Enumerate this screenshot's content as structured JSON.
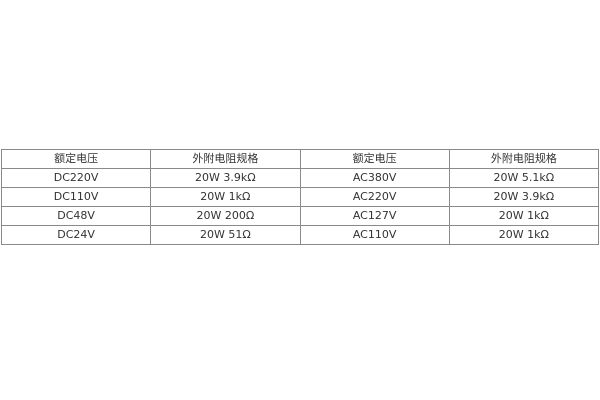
{
  "table": {
    "headers": [
      "额定电压",
      "外附电阻规格",
      "额定电压",
      "外附电阻规格"
    ],
    "rows": [
      [
        "DC220V",
        "20W 3.9kΩ",
        "AC380V",
        "20W 5.1kΩ"
      ],
      [
        "DC110V",
        "20W 1kΩ",
        "AC220V",
        "20W 3.9kΩ"
      ],
      [
        "DC48V",
        "20W 200Ω",
        "AC127V",
        "20W 1kΩ"
      ],
      [
        "DC24V",
        "20W 51Ω",
        "AC110V",
        "20W 1kΩ"
      ]
    ]
  }
}
